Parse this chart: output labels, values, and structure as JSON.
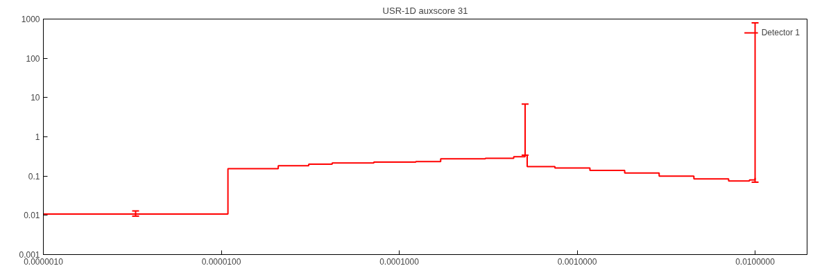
{
  "chart_data": {
    "type": "step",
    "title": "USR-1D auxscore 31",
    "log": "xy",
    "grid": false,
    "legend": "top right",
    "xlim": [
      1e-06,
      0.0196
    ],
    "ylim": [
      0.001,
      1000
    ],
    "xticks": [
      {
        "value": 1e-06,
        "label": "0.0000010"
      },
      {
        "value": 1e-05,
        "label": "0.0000100"
      },
      {
        "value": 0.0001,
        "label": "0.0001000"
      },
      {
        "value": 0.001,
        "label": "0.0010000"
      },
      {
        "value": 0.01,
        "label": "0.0100000"
      }
    ],
    "yticks": [
      {
        "value": 0.001,
        "label": "0.001"
      },
      {
        "value": 0.01,
        "label": "0.01"
      },
      {
        "value": 0.1,
        "label": "0.1"
      },
      1,
      10,
      100,
      1000
    ],
    "x": [
      1e-06,
      3.3e-06,
      1.09e-05,
      2.09e-05,
      3.1e-05,
      4.2e-05,
      7.2e-05,
      0.000124,
      0.000171,
      0.000305,
      0.00044,
      0.00051,
      0.000524,
      0.00075,
      0.00118,
      0.00185,
      0.00289,
      0.00453,
      0.0071,
      0.0093,
      0.01
    ],
    "series": [
      {
        "name": "Detector 1",
        "color": "#ff0000",
        "values": [
          0.0108,
          0.0108,
          0.155,
          0.183,
          0.2,
          0.216,
          0.226,
          0.233,
          0.275,
          0.284,
          0.31,
          0.34,
          0.175,
          0.16,
          0.14,
          0.12,
          0.1,
          0.085,
          0.075,
          0.08,
          0.09
        ],
        "errors": [
          null,
          [
            0.0095,
            0.013
          ],
          null,
          null,
          null,
          null,
          null,
          null,
          null,
          null,
          null,
          [
            0.34,
            6.8
          ],
          null,
          null,
          null,
          null,
          null,
          null,
          null,
          null,
          [
            0.07,
            800
          ]
        ]
      }
    ]
  }
}
